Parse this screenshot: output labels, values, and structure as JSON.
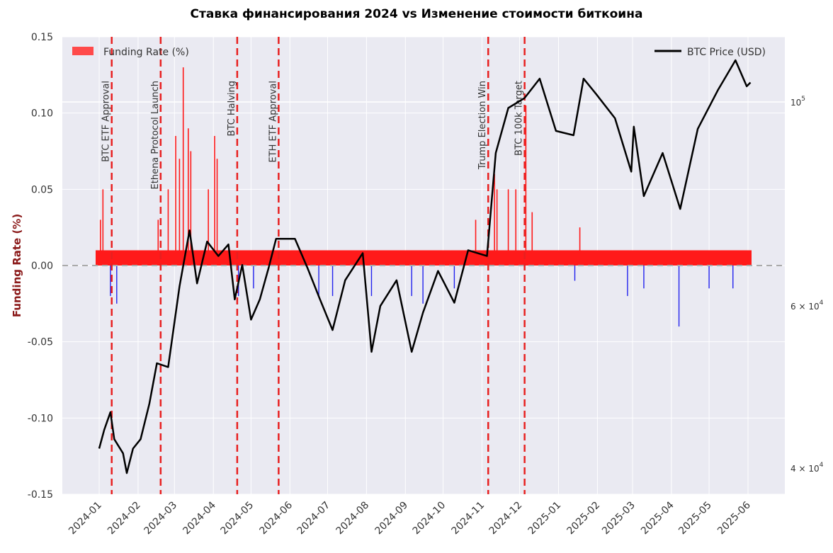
{
  "chart_data": {
    "type": "bar",
    "title": "Ставка финансирования 2024 vs Изменение стоимости биткоина",
    "ylabel": "Funding Rate (%)",
    "legend": {
      "bars": "Funding Rate (%)",
      "line": "BTC Price (USD)"
    },
    "legend_placement": {
      "bars": "top-left",
      "line": "top-right"
    },
    "grid": true,
    "left_axis": {
      "ylim": [
        -0.15,
        0.15
      ],
      "ticks": [
        "0.15",
        "0.10",
        "0.05",
        "0.00",
        "-0.05",
        "-0.10",
        "-0.15"
      ]
    },
    "right_axis": {
      "scale": "log",
      "ticks": [
        {
          "value": 100000,
          "base": "10",
          "exp": "5"
        },
        {
          "value": 60000,
          "base": "6 × 10",
          "exp": "4"
        },
        {
          "value": 40000,
          "base": "4 × 10",
          "exp": "4"
        }
      ]
    },
    "x_ticks": [
      "2024-01",
      "2024-02",
      "2024-03",
      "2024-04",
      "2024-05",
      "2024-06",
      "2024-07",
      "2024-08",
      "2024-09",
      "2024-10",
      "2024-11",
      "2024-12",
      "2025-01",
      "2025-02",
      "2025-03",
      "2025-04",
      "2025-05",
      "2025-06"
    ],
    "events": [
      {
        "label": "BTC ETF Approval",
        "date": "2024-01-11"
      },
      {
        "label": "Ethena Protocol Launch",
        "date": "2024-02-19"
      },
      {
        "label": "BTC Halving",
        "date": "2024-04-20"
      },
      {
        "label": "ETH ETF Approval",
        "date": "2024-05-23"
      },
      {
        "label": "Trump Election Win",
        "date": "2024-11-06"
      },
      {
        "label": "BTC 100k Target",
        "date": "2024-12-05"
      }
    ],
    "price_series": {
      "name": "BTC Price (USD)",
      "points": [
        [
          "2024-01-01",
          42000
        ],
        [
          "2024-01-05",
          44000
        ],
        [
          "2024-01-10",
          46000
        ],
        [
          "2024-01-13",
          43000
        ],
        [
          "2024-01-20",
          41500
        ],
        [
          "2024-01-23",
          39500
        ],
        [
          "2024-01-28",
          42000
        ],
        [
          "2024-02-03",
          43000
        ],
        [
          "2024-02-10",
          47000
        ],
        [
          "2024-02-16",
          52000
        ],
        [
          "2024-02-25",
          51500
        ],
        [
          "2024-03-05",
          63000
        ],
        [
          "2024-03-13",
          72500
        ],
        [
          "2024-03-19",
          63500
        ],
        [
          "2024-03-27",
          70500
        ],
        [
          "2024-04-05",
          68000
        ],
        [
          "2024-04-13",
          70000
        ],
        [
          "2024-04-18",
          61000
        ],
        [
          "2024-04-24",
          66500
        ],
        [
          "2024-05-01",
          58000
        ],
        [
          "2024-05-08",
          61000
        ],
        [
          "2024-05-15",
          66000
        ],
        [
          "2024-05-21",
          71000
        ],
        [
          "2024-06-05",
          71000
        ],
        [
          "2024-06-15",
          66000
        ],
        [
          "2024-06-25",
          61000
        ],
        [
          "2024-07-05",
          56500
        ],
        [
          "2024-07-15",
          64000
        ],
        [
          "2024-07-29",
          68500
        ],
        [
          "2024-08-05",
          53500
        ],
        [
          "2024-08-12",
          60000
        ],
        [
          "2024-08-25",
          64000
        ],
        [
          "2024-09-06",
          53500
        ],
        [
          "2024-09-15",
          59000
        ],
        [
          "2024-09-27",
          65500
        ],
        [
          "2024-10-10",
          60500
        ],
        [
          "2024-10-21",
          69000
        ],
        [
          "2024-11-05",
          68000
        ],
        [
          "2024-11-12",
          88000
        ],
        [
          "2024-11-22",
          98500
        ],
        [
          "2024-12-05",
          101000
        ],
        [
          "2024-12-17",
          106000
        ],
        [
          "2024-12-30",
          93000
        ],
        [
          "2025-01-13",
          92000
        ],
        [
          "2025-01-21",
          106000
        ],
        [
          "2025-01-31",
          102000
        ],
        [
          "2025-02-15",
          96000
        ],
        [
          "2025-02-28",
          84000
        ],
        [
          "2025-03-02",
          94000
        ],
        [
          "2025-03-10",
          79000
        ],
        [
          "2025-03-25",
          88000
        ],
        [
          "2025-04-08",
          76500
        ],
        [
          "2025-04-22",
          93500
        ],
        [
          "2025-05-08",
          103000
        ],
        [
          "2025-05-22",
          111000
        ],
        [
          "2025-05-31",
          104000
        ],
        [
          "2025-06-03",
          105000
        ]
      ]
    },
    "funding_series": {
      "name": "Funding Rate (%)",
      "spikes": [
        [
          "2024-01-02",
          0.03
        ],
        [
          "2024-01-04",
          0.05
        ],
        [
          "2024-02-17",
          0.03
        ],
        [
          "2024-02-25",
          0.05
        ],
        [
          "2024-03-02",
          0.085
        ],
        [
          "2024-03-05",
          0.07
        ],
        [
          "2024-03-08",
          0.13
        ],
        [
          "2024-03-12",
          0.09
        ],
        [
          "2024-03-14",
          0.075
        ],
        [
          "2024-03-28",
          0.05
        ],
        [
          "2024-04-02",
          0.085
        ],
        [
          "2024-04-04",
          0.07
        ],
        [
          "2024-10-27",
          0.03
        ],
        [
          "2024-11-11",
          0.06
        ],
        [
          "2024-11-13",
          0.05
        ],
        [
          "2024-11-22",
          0.05
        ],
        [
          "2024-11-28",
          0.05
        ],
        [
          "2024-12-06",
          0.105
        ],
        [
          "2024-12-11",
          0.035
        ],
        [
          "2025-01-18",
          0.025
        ]
      ],
      "dips": [
        [
          "2024-01-10",
          -0.02
        ],
        [
          "2024-01-15",
          -0.025
        ],
        [
          "2024-04-21",
          -0.02
        ],
        [
          "2024-05-03",
          -0.015
        ],
        [
          "2024-06-24",
          -0.02
        ],
        [
          "2024-07-05",
          -0.02
        ],
        [
          "2024-08-05",
          -0.02
        ],
        [
          "2024-09-06",
          -0.02
        ],
        [
          "2024-09-15",
          -0.025
        ],
        [
          "2024-10-10",
          -0.015
        ],
        [
          "2025-01-14",
          -0.01
        ],
        [
          "2025-02-25",
          -0.02
        ],
        [
          "2025-03-10",
          -0.015
        ],
        [
          "2025-04-07",
          -0.04
        ],
        [
          "2025-05-01",
          -0.015
        ],
        [
          "2025-05-20",
          -0.015
        ]
      ]
    }
  }
}
